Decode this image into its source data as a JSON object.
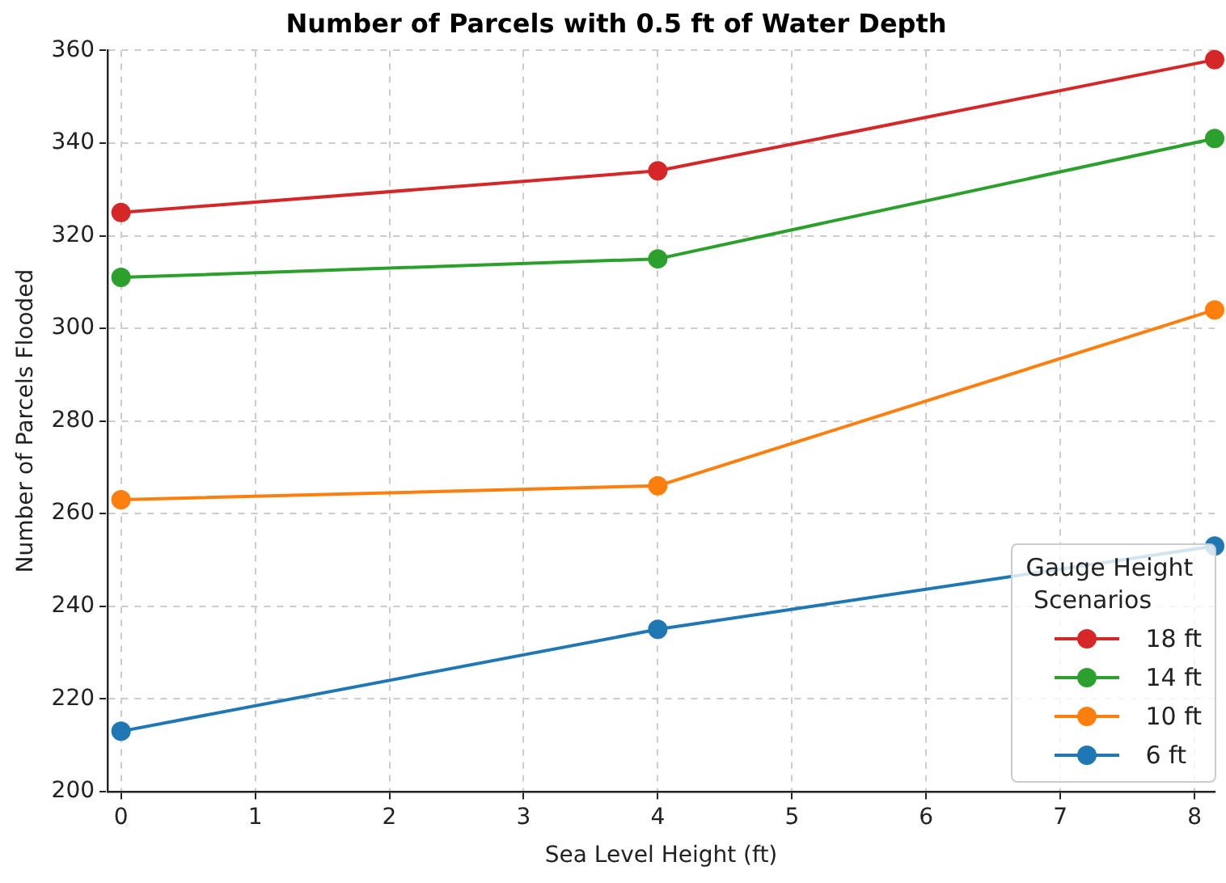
{
  "chart_data": {
    "type": "line",
    "title": "Number of Parcels with 0.5 ft of Water Depth",
    "xlabel": "Sea Level Height (ft)",
    "ylabel": "Number of Parcels Flooded",
    "legend_title": "Gauge Height\n Scenarios",
    "x": [
      0,
      4,
      8.15
    ],
    "xlim": [
      -0.1,
      8.15
    ],
    "xticks": [
      0,
      1,
      2,
      3,
      4,
      5,
      6,
      7,
      8
    ],
    "ylim": [
      200,
      360
    ],
    "yticks": [
      200,
      220,
      240,
      260,
      280,
      300,
      320,
      340,
      360
    ],
    "grid": true,
    "legend": "bottom right",
    "marker": "circle",
    "line_style": "solid",
    "series": [
      {
        "name": "18 ft",
        "color": "#d62728",
        "values": [
          325,
          334,
          358
        ]
      },
      {
        "name": "14 ft",
        "color": "#2ca02c",
        "values": [
          311,
          315,
          341
        ]
      },
      {
        "name": "10 ft",
        "color": "#ff7f0e",
        "values": [
          263,
          266,
          304
        ]
      },
      {
        "name": "6 ft",
        "color": "#1f77b4",
        "values": [
          213,
          235,
          253
        ]
      }
    ]
  }
}
